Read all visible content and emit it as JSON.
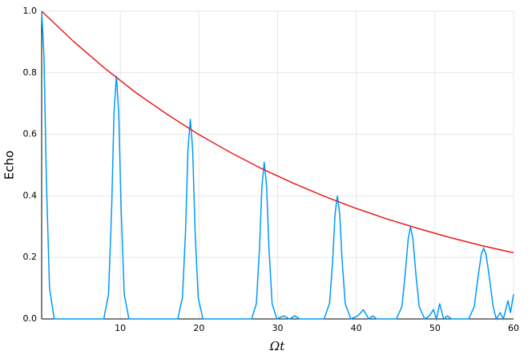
{
  "chart_data": {
    "type": "line",
    "xlabel": "Ωt",
    "ylabel": "Echo",
    "xlim": [
      0,
      60
    ],
    "xticks": [
      10,
      20,
      30,
      40,
      50,
      60
    ],
    "ylim": [
      0,
      1
    ],
    "yticks": [
      {
        "value": 0,
        "label": "0.0"
      },
      {
        "value": 0.2,
        "label": "0.2"
      },
      {
        "value": 0.4,
        "label": "0.4"
      },
      {
        "value": 0.6,
        "label": "0.6"
      },
      {
        "value": 0.8,
        "label": "0.8"
      },
      {
        "value": 1,
        "label": "1.0"
      }
    ],
    "grid": true,
    "series": [
      {
        "color": "#009af9",
        "x": [
          0,
          0.3,
          0.6,
          1.0,
          1.6,
          7.9,
          8.5,
          8.9,
          9.2,
          9.5,
          9.8,
          10.1,
          10.5,
          11.1,
          17.3,
          17.9,
          18.3,
          18.6,
          18.9,
          19.2,
          19.5,
          19.9,
          20.5,
          26.7,
          27.3,
          27.7,
          28.0,
          28.3,
          28.6,
          28.9,
          29.3,
          29.9,
          30.8,
          31.5,
          32.2,
          32.8,
          35.9,
          36.6,
          37.0,
          37.3,
          37.6,
          37.9,
          38.2,
          38.6,
          39.3,
          40.2,
          40.9,
          41.6,
          42.1,
          42.6,
          45.1,
          45.8,
          46.2,
          46.6,
          46.9,
          47.2,
          47.6,
          48.0,
          48.7,
          49.3,
          49.8,
          50.2,
          50.6,
          51.1,
          51.6,
          52.1,
          54.3,
          55.0,
          55.5,
          55.9,
          56.2,
          56.5,
          56.9,
          57.4,
          57.8,
          58.3,
          58.7,
          59.3,
          59.6,
          60
        ],
        "values": [
          1.0,
          0.85,
          0.45,
          0.1,
          0,
          0,
          0.08,
          0.36,
          0.67,
          0.79,
          0.67,
          0.36,
          0.08,
          0,
          0,
          0.07,
          0.29,
          0.55,
          0.65,
          0.55,
          0.29,
          0.07,
          0,
          0,
          0.05,
          0.23,
          0.43,
          0.51,
          0.43,
          0.23,
          0.05,
          0,
          0.01,
          0,
          0.01,
          0,
          0,
          0.05,
          0.19,
          0.34,
          0.4,
          0.34,
          0.19,
          0.05,
          0,
          0.01,
          0.03,
          0,
          0.01,
          0,
          0,
          0.04,
          0.14,
          0.26,
          0.3,
          0.26,
          0.14,
          0.04,
          0,
          0.01,
          0.03,
          0,
          0.05,
          0,
          0.01,
          0,
          0,
          0.04,
          0.14,
          0.21,
          0.23,
          0.21,
          0.14,
          0.04,
          0,
          0.02,
          0,
          0.06,
          0.02,
          0.08
        ]
      },
      {
        "color": "#e81c1c",
        "x": [
          0,
          4,
          8,
          12,
          16,
          20,
          24,
          28,
          32,
          36,
          40,
          44,
          48,
          52,
          56,
          60
        ],
        "values": [
          1,
          0.903,
          0.815,
          0.735,
          0.664,
          0.599,
          0.541,
          0.488,
          0.441,
          0.398,
          0.359,
          0.324,
          0.293,
          0.264,
          0.238,
          0.215
        ]
      }
    ]
  }
}
